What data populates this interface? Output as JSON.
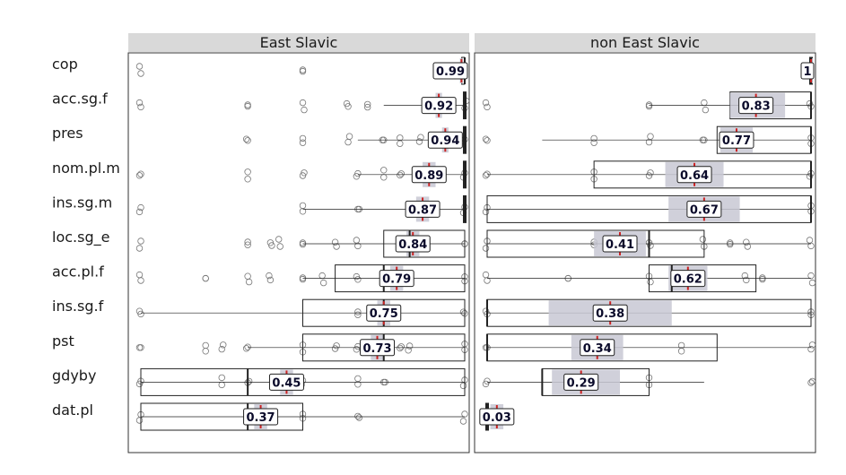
{
  "chart_data": {
    "type": "boxplot",
    "panels": [
      "East Slavic",
      "non East Slavic"
    ],
    "categories": [
      "cop",
      "acc.sg.f",
      "pres",
      "nom.pl.m",
      "ins.sg.m",
      "loc.sg_e",
      "acc.pl.f",
      "ins.sg.f",
      "pst",
      "gdyby",
      "dat.pl"
    ],
    "xlim": [
      0,
      1
    ],
    "grid": false,
    "series": [
      {
        "panel": "East Slavic",
        "boxes": [
          {
            "label": "cop",
            "mean": 0.99,
            "ci": [
              0.985,
              0.995
            ],
            "q1": 0.995,
            "median": 1.0,
            "q3": 1.0,
            "whisker": [
              0.99,
              1.0
            ],
            "points": [
              0.0,
              0.5,
              0.995
            ]
          },
          {
            "label": "acc.sg.f",
            "mean": 0.92,
            "ci": [
              0.91,
              0.93
            ],
            "q1": 1.0,
            "median": 1.0,
            "q3": 1.0,
            "whisker": [
              0.75,
              1.0
            ],
            "points": [
              0.0,
              0.33,
              0.5,
              0.64,
              0.7,
              1.0
            ]
          },
          {
            "label": "pres",
            "mean": 0.94,
            "ci": [
              0.93,
              0.95
            ],
            "q1": 1.0,
            "median": 1.0,
            "q3": 1.0,
            "whisker": [
              0.67,
              1.0
            ],
            "points": [
              0.33,
              0.5,
              0.64,
              0.75,
              0.8,
              0.86,
              1.0
            ]
          },
          {
            "label": "nom.pl.m",
            "mean": 0.89,
            "ci": [
              0.87,
              0.91
            ],
            "q1": 1.0,
            "median": 1.0,
            "q3": 1.0,
            "whisker": [
              0.67,
              1.0
            ],
            "points": [
              0.0,
              0.33,
              0.5,
              0.67,
              0.75,
              0.8,
              1.0
            ]
          },
          {
            "label": "ins.sg.m",
            "mean": 0.87,
            "ci": [
              0.85,
              0.89
            ],
            "q1": 1.0,
            "median": 1.0,
            "q3": 1.0,
            "whisker": [
              0.5,
              1.0
            ],
            "points": [
              0.0,
              0.5,
              0.67,
              1.0
            ]
          },
          {
            "label": "loc.sg_e",
            "mean": 0.84,
            "ci": [
              0.82,
              0.86
            ],
            "q1": 0.75,
            "median": 0.83,
            "q3": 1.0,
            "whisker": [
              0.5,
              1.0
            ],
            "points": [
              0.0,
              0.33,
              0.4,
              0.43,
              0.5,
              0.6,
              0.67,
              1.0
            ]
          },
          {
            "label": "acc.pl.f",
            "mean": 0.79,
            "ci": [
              0.77,
              0.81
            ],
            "q1": 0.6,
            "median": 0.75,
            "q3": 1.0,
            "whisker": [
              0.5,
              1.0
            ],
            "points": [
              0.0,
              0.2,
              0.33,
              0.4,
              0.5,
              0.56,
              0.67,
              0.75,
              0.8,
              0.83,
              1.0
            ]
          },
          {
            "label": "ins.sg.f",
            "mean": 0.75,
            "ci": [
              0.73,
              0.77
            ],
            "q1": 0.5,
            "median": 0.75,
            "q3": 1.0,
            "whisker": [
              0.0,
              1.0
            ],
            "points": [
              0.0,
              0.67,
              0.75,
              1.0
            ]
          },
          {
            "label": "pst",
            "mean": 0.73,
            "ci": [
              0.71,
              0.75
            ],
            "q1": 0.5,
            "median": 0.75,
            "q3": 1.0,
            "whisker": [
              0.33,
              1.0
            ],
            "points": [
              0.0,
              0.2,
              0.25,
              0.33,
              0.5,
              0.6,
              0.67,
              0.75,
              0.8,
              0.83,
              1.0
            ]
          },
          {
            "label": "gdyby",
            "mean": 0.45,
            "ci": [
              0.43,
              0.47
            ],
            "q1": 0.0,
            "median": 0.33,
            "q3": 1.0,
            "whisker": [
              0.0,
              1.0
            ],
            "points": [
              0.0,
              0.25,
              0.33,
              0.5,
              0.67,
              0.75,
              1.0
            ]
          },
          {
            "label": "dat.pl",
            "mean": 0.37,
            "ci": [
              0.35,
              0.39
            ],
            "q1": 0.0,
            "median": 0.33,
            "q3": 0.5,
            "whisker": [
              0.0,
              1.0
            ],
            "points": [
              0.0,
              0.5,
              0.67,
              1.0
            ]
          }
        ]
      },
      {
        "panel": "non East Slavic",
        "boxes": [
          {
            "label": "cop",
            "mean": 1.0,
            "ci": [
              1.0,
              1.0
            ],
            "q1": 1.0,
            "median": 1.0,
            "q3": 1.0,
            "whisker": [
              1.0,
              1.0
            ],
            "points": []
          },
          {
            "label": "acc.sg.f",
            "mean": 0.83,
            "ci": [
              0.75,
              0.92
            ],
            "q1": 0.75,
            "median": 1.0,
            "q3": 1.0,
            "whisker": [
              0.5,
              1.0
            ],
            "points": [
              0.0,
              0.5,
              0.67,
              1.0
            ]
          },
          {
            "label": "pres",
            "mean": 0.77,
            "ci": [
              0.72,
              0.82
            ],
            "q1": 0.71,
            "median": 1.0,
            "q3": 1.0,
            "whisker": [
              0.17,
              1.0
            ],
            "points": [
              0.0,
              0.33,
              0.5,
              0.67,
              1.0
            ]
          },
          {
            "label": "nom.pl.m",
            "mean": 0.64,
            "ci": [
              0.55,
              0.73
            ],
            "q1": 0.33,
            "median": 1.0,
            "q3": 1.0,
            "whisker": [
              0.0,
              1.0
            ],
            "points": [
              0.0,
              0.33,
              0.5,
              1.0
            ]
          },
          {
            "label": "ins.sg.m",
            "mean": 0.67,
            "ci": [
              0.56,
              0.78
            ],
            "q1": 0.0,
            "median": 1.0,
            "q3": 1.0,
            "whisker": [
              0.0,
              1.0
            ],
            "points": [
              0.0,
              1.0
            ]
          },
          {
            "label": "loc.sg_e",
            "mean": 0.41,
            "ci": [
              0.33,
              0.49
            ],
            "q1": 0.0,
            "median": 0.5,
            "q3": 0.67,
            "whisker": [
              0.0,
              1.0
            ],
            "points": [
              0.0,
              0.33,
              0.5,
              0.67,
              0.75,
              0.8,
              1.0
            ]
          },
          {
            "label": "acc.pl.f",
            "mean": 0.62,
            "ci": [
              0.56,
              0.68
            ],
            "q1": 0.5,
            "median": 0.57,
            "q3": 0.83,
            "whisker": [
              0.0,
              1.0
            ],
            "points": [
              0.0,
              0.25,
              0.5,
              0.8,
              0.85,
              1.0
            ]
          },
          {
            "label": "ins.sg.f",
            "mean": 0.38,
            "ci": [
              0.19,
              0.57
            ],
            "q1": 0.0,
            "median": 0.0,
            "q3": 1.0,
            "whisker": [
              0.0,
              1.0
            ],
            "points": [
              0.0,
              1.0
            ]
          },
          {
            "label": "pst",
            "mean": 0.34,
            "ci": [
              0.26,
              0.42
            ],
            "q1": 0.0,
            "median": 0.0,
            "q3": 0.71,
            "whisker": [
              0.0,
              1.0
            ],
            "points": [
              0.0,
              0.6,
              1.0
            ]
          },
          {
            "label": "gdyby",
            "mean": 0.29,
            "ci": [
              0.2,
              0.41
            ],
            "q1": 0.17,
            "median": 0.17,
            "q3": 0.5,
            "whisker": [
              0.0,
              0.67
            ],
            "points": [
              0.0,
              0.5,
              1.0
            ]
          },
          {
            "label": "dat.pl",
            "mean": 0.03,
            "ci": [
              0.01,
              0.05
            ],
            "q1": 0.0,
            "median": 0.0,
            "q3": 0.0,
            "whisker": [
              0.0,
              0.0
            ],
            "points": [
              0.0
            ]
          }
        ]
      }
    ]
  },
  "colors": {
    "strip_bg": "#d9d9d9",
    "panel_border": "#333333",
    "ci_fill": "#c8c8d4",
    "mean_line": "#cc2222",
    "box_stroke": "#222222",
    "point_stroke": "#777777",
    "label_text": "#0a0a2a"
  }
}
